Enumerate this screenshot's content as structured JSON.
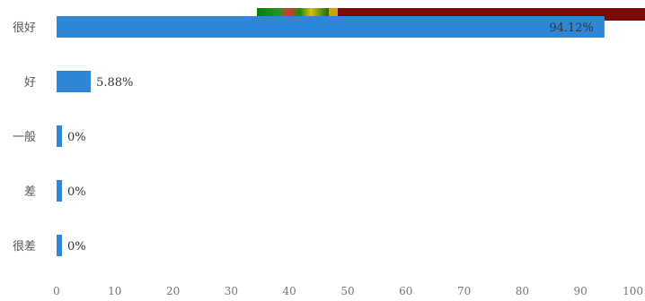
{
  "chart_data": {
    "type": "bar",
    "orientation": "horizontal",
    "categories": [
      "很好",
      "好",
      "一般",
      "差",
      "很差"
    ],
    "values": [
      94.12,
      5.88,
      0,
      0,
      0
    ],
    "value_labels": [
      "94.12%",
      "5.88%",
      "0%",
      "0%",
      "0%"
    ],
    "xlim": [
      0,
      100
    ],
    "xticks": [
      0,
      10,
      20,
      30,
      40,
      50,
      60,
      70,
      80,
      90,
      100
    ],
    "title": "",
    "xlabel": "",
    "ylabel": "",
    "grid": false,
    "legend": "none"
  },
  "colors": {
    "bar": "#2f86d6",
    "label_text": "#555555",
    "tick_text": "#777777",
    "value_text": "#333333",
    "banner": "#7a0a0a"
  }
}
